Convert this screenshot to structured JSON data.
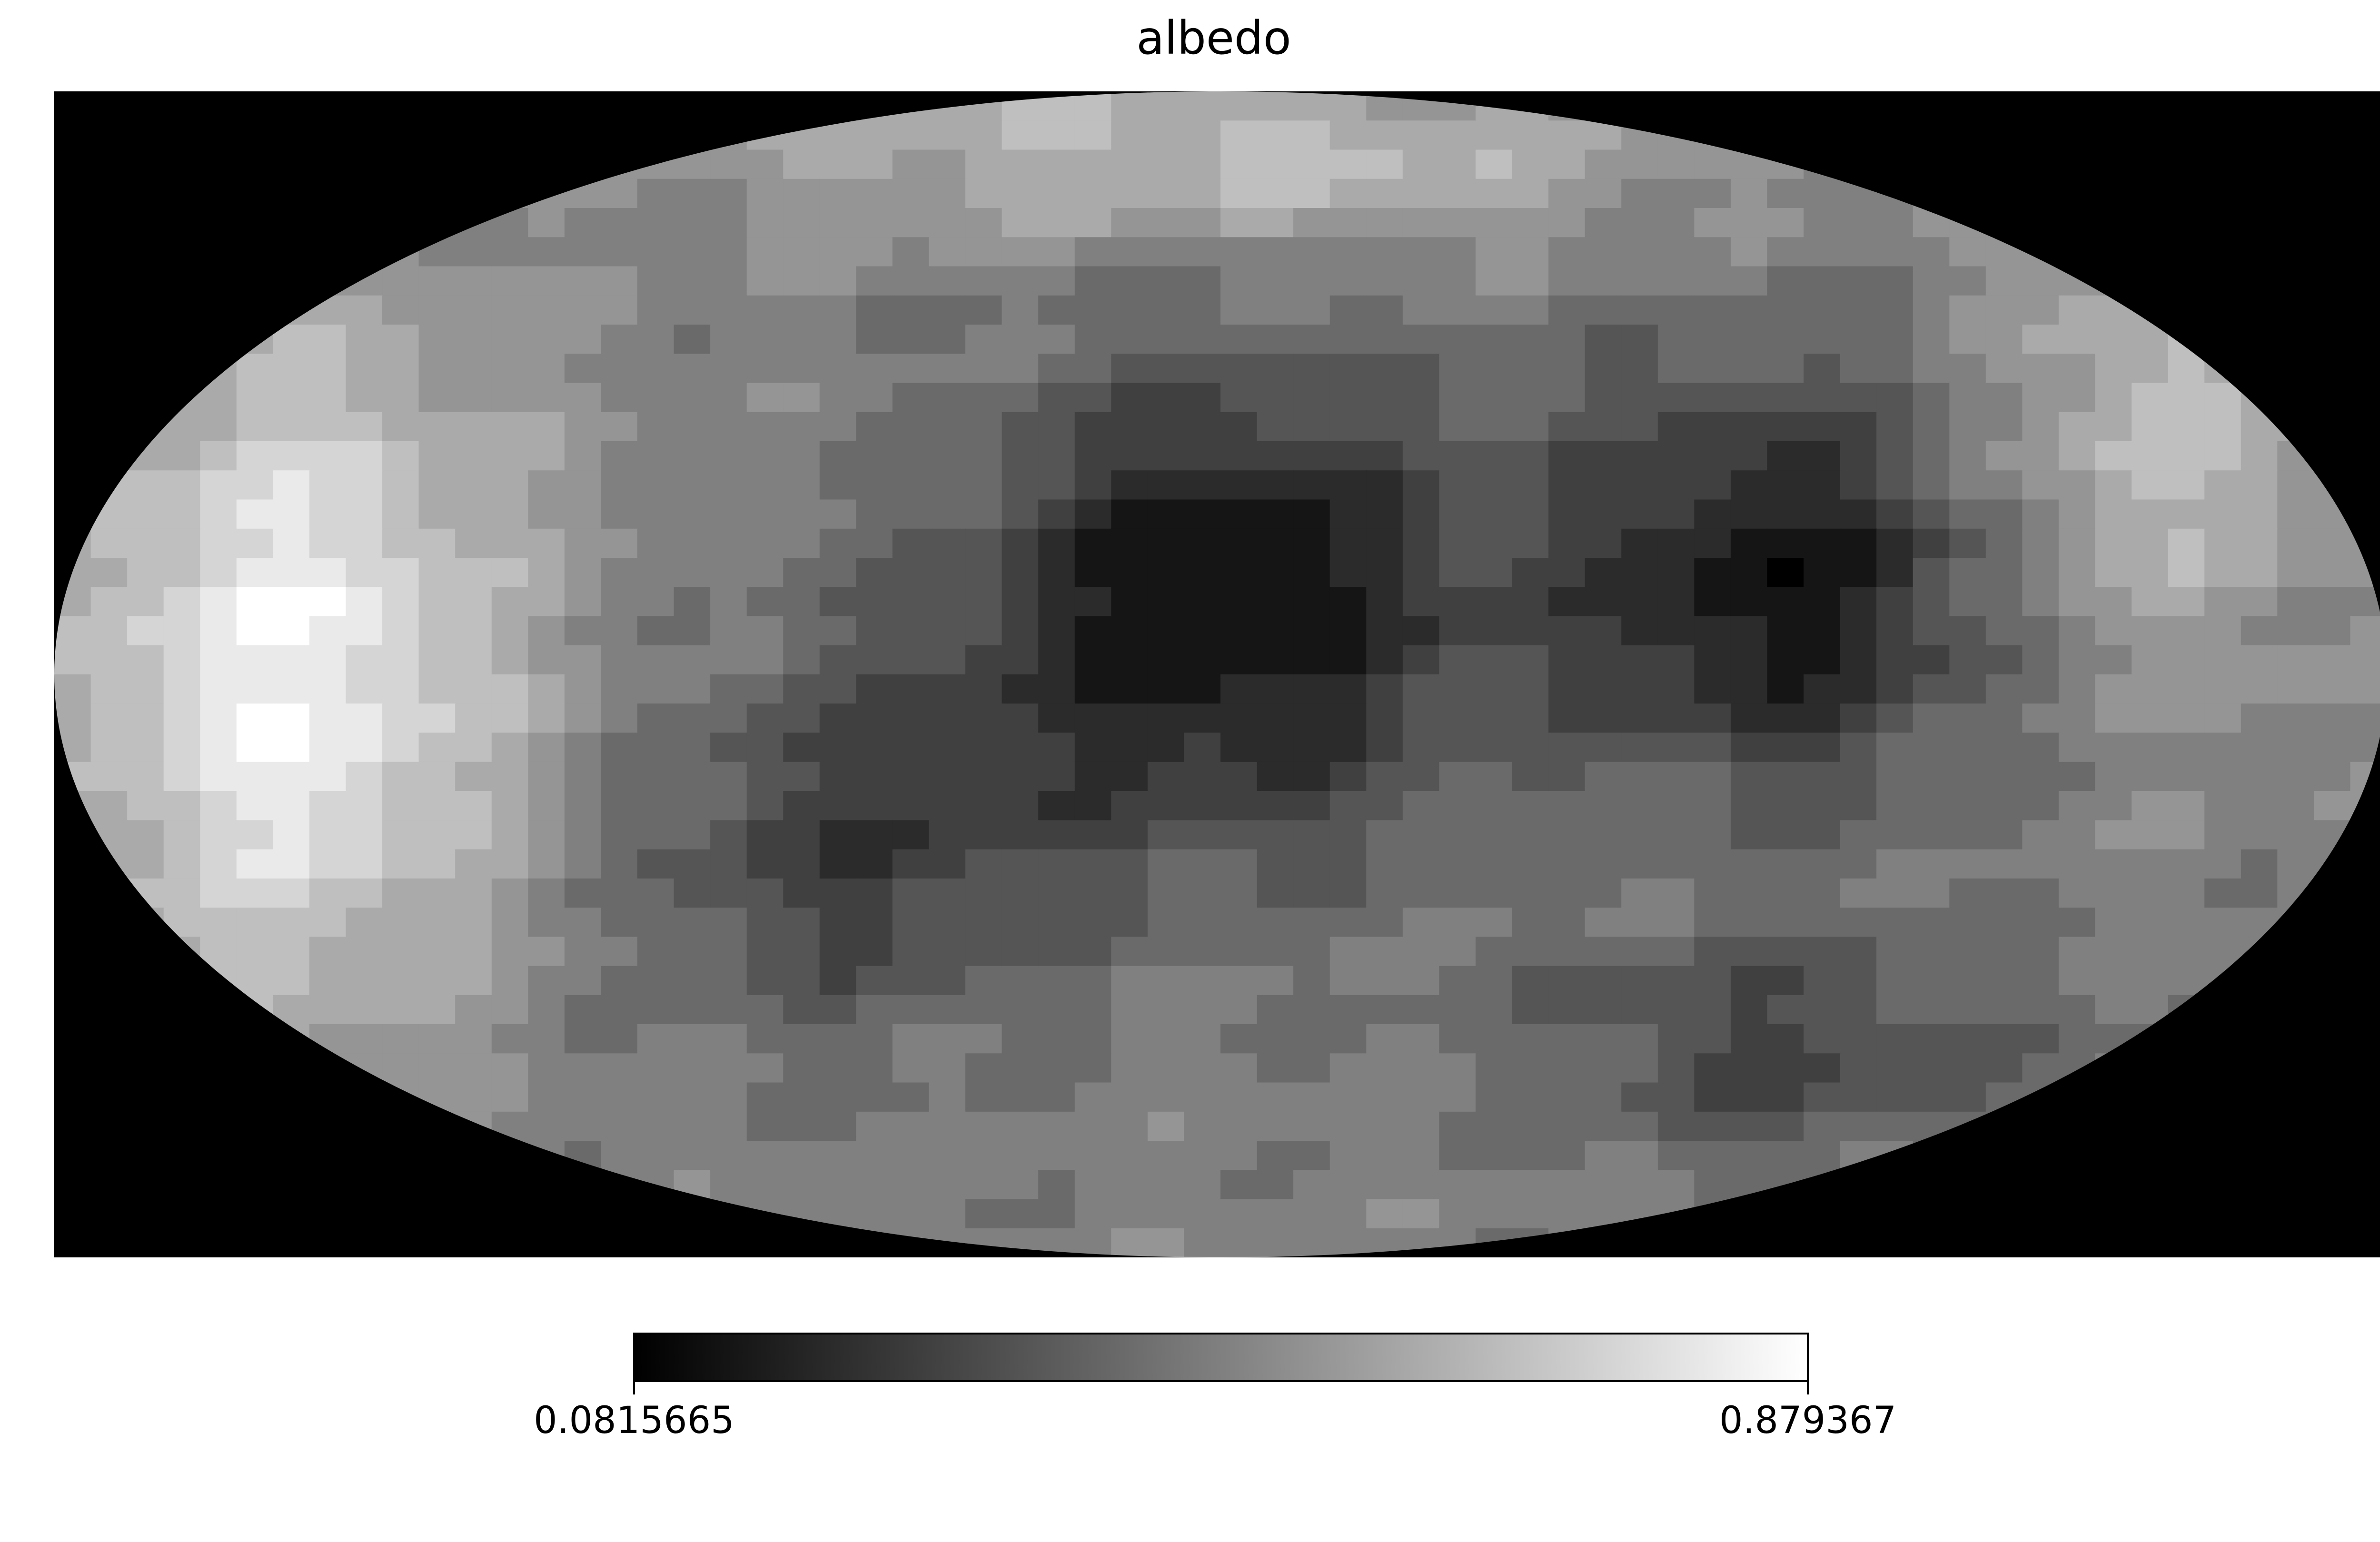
{
  "chart_data": {
    "type": "heatmap",
    "projection": "mollweide",
    "title": "albedo",
    "colormap": "gray",
    "background_color": "#000000",
    "colorbar": {
      "min": 0.0815665,
      "max": 0.879367,
      "min_label": "0.0815665",
      "max_label": "0.879367",
      "placement": "bottom"
    },
    "grid": false,
    "legend": "none"
  }
}
